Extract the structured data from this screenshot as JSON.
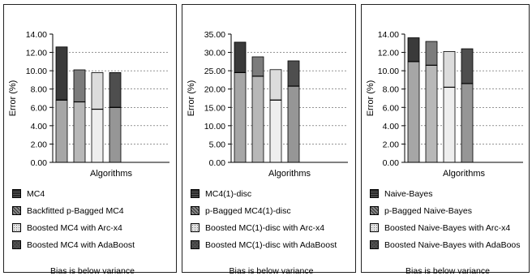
{
  "chart_data": [
    {
      "type": "bar",
      "stacked": true,
      "xlabel": "Algorithms",
      "ylabel": "Error (%)",
      "ylim": [
        0,
        14
      ],
      "ytick_step": 2,
      "ytick_labels": [
        "0.00",
        "2.00",
        "4.00",
        "6.00",
        "8.00",
        "10.00",
        "12.00",
        "14.00"
      ],
      "grid": true,
      "series": [
        {
          "name": "MC4",
          "bias": 6.8,
          "total": 12.6
        },
        {
          "name": "Backfitted p-Bagged MC4",
          "bias": 6.6,
          "total": 10.1
        },
        {
          "name": "Boosted MC4 with Arc-x4",
          "bias": 5.8,
          "total": 9.8
        },
        {
          "name": "Boosted MC4 with AdaBoost",
          "bias": 6.0,
          "total": 9.8
        }
      ],
      "note": "Bias is below variance"
    },
    {
      "type": "bar",
      "stacked": true,
      "xlabel": "Algorithms",
      "ylabel": "Error (%)",
      "ylim": [
        0,
        35
      ],
      "ytick_step": 5,
      "ytick_labels": [
        "0.00",
        "5.00",
        "10.00",
        "15.00",
        "20.00",
        "25.00",
        "30.00",
        "35.00"
      ],
      "grid": true,
      "series": [
        {
          "name": "MC4(1)-disc",
          "bias": 24.5,
          "total": 32.8
        },
        {
          "name": "p-Bagged MC4(1)-disc",
          "bias": 23.5,
          "total": 28.8
        },
        {
          "name": "Boosted MC(1)-disc with Arc-x4",
          "bias": 17.0,
          "total": 25.3
        },
        {
          "name": "Boosted MC(1)-disc with AdaBoost",
          "bias": 20.8,
          "total": 27.7
        }
      ],
      "note": "Bias is below variance"
    },
    {
      "type": "bar",
      "stacked": true,
      "xlabel": "Algorithms",
      "ylabel": "Error (%)",
      "ylim": [
        0,
        14
      ],
      "ytick_step": 2,
      "ytick_labels": [
        "0.00",
        "2.00",
        "4.00",
        "6.00",
        "8.00",
        "10.00",
        "12.00",
        "14.00"
      ],
      "grid": true,
      "series": [
        {
          "name": "Naive-Bayes",
          "bias": 11.0,
          "total": 13.6
        },
        {
          "name": "p-Bagged Naive-Bayes",
          "bias": 10.6,
          "total": 13.2
        },
        {
          "name": "Boosted Naive-Bayes with Arc-x4",
          "bias": 8.2,
          "total": 12.1
        },
        {
          "name": "Boosted Naive-Bayes with AdaBoos",
          "bias": 8.6,
          "total": 12.4
        }
      ],
      "note": "Bias is below variance"
    }
  ]
}
